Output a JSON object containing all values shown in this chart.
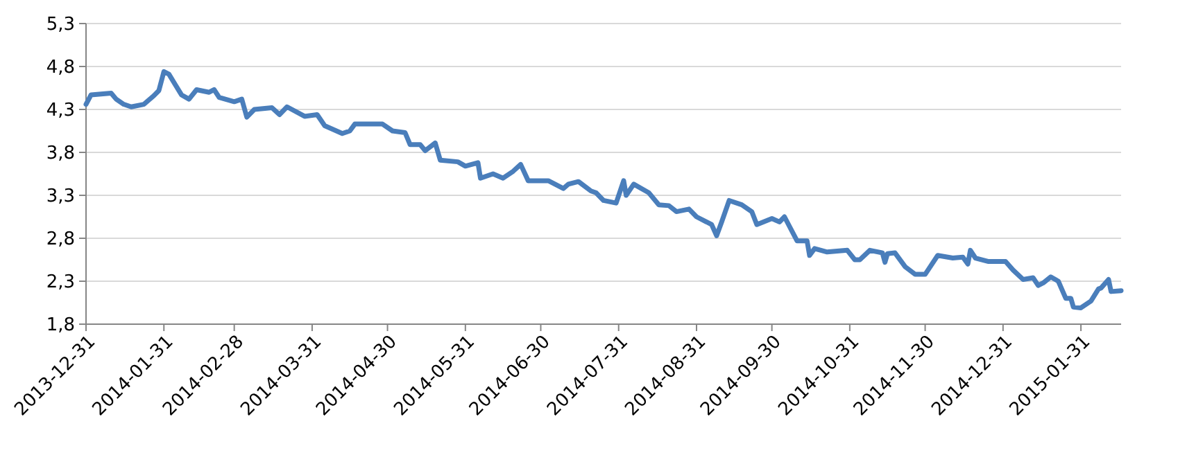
{
  "chart_data": {
    "type": "line",
    "x": [
      "2013-12-31",
      "2014-01-02",
      "2014-01-10",
      "2014-01-12",
      "2014-01-15",
      "2014-01-18",
      "2014-01-23",
      "2014-01-27",
      "2014-01-29",
      "2014-01-31",
      "2014-02-02",
      "2014-02-07",
      "2014-02-10",
      "2014-02-13",
      "2014-02-18",
      "2014-02-20",
      "2014-02-22",
      "2014-02-28",
      "2014-03-03",
      "2014-03-05",
      "2014-03-08",
      "2014-03-15",
      "2014-03-18",
      "2014-03-21",
      "2014-03-28",
      "2014-04-02",
      "2014-04-05",
      "2014-04-12",
      "2014-04-15",
      "2014-04-17",
      "2014-04-28",
      "2014-05-02",
      "2014-05-07",
      "2014-05-09",
      "2014-05-13",
      "2014-05-15",
      "2014-05-19",
      "2014-05-21",
      "2014-05-28",
      "2014-05-31",
      "2014-06-05",
      "2014-06-06",
      "2014-06-11",
      "2014-06-15",
      "2014-06-19",
      "2014-06-22",
      "2014-06-25",
      "2014-07-03",
      "2014-07-09",
      "2014-07-11",
      "2014-07-15",
      "2014-07-20",
      "2014-07-22",
      "2014-07-25",
      "2014-07-30",
      "2014-08-02",
      "2014-08-03",
      "2014-08-06",
      "2014-08-12",
      "2014-08-16",
      "2014-08-20",
      "2014-08-23",
      "2014-08-28",
      "2014-08-31",
      "2014-09-06",
      "2014-09-08",
      "2014-09-10",
      "2014-09-13",
      "2014-09-18",
      "2014-09-22",
      "2014-09-24",
      "2014-09-30",
      "2014-10-03",
      "2014-10-05",
      "2014-10-10",
      "2014-10-14",
      "2014-10-15",
      "2014-10-17",
      "2014-10-22",
      "2014-10-30",
      "2014-11-02",
      "2014-11-04",
      "2014-11-08",
      "2014-11-13",
      "2014-11-14",
      "2014-11-15",
      "2014-11-18",
      "2014-11-22",
      "2014-11-26",
      "2014-11-30",
      "2014-12-05",
      "2014-12-11",
      "2014-12-15",
      "2014-12-17",
      "2014-12-18",
      "2014-12-20",
      "2014-12-25",
      "2015-01-01",
      "2015-01-04",
      "2015-01-08",
      "2015-01-12",
      "2015-01-14",
      "2015-01-16",
      "2015-01-19",
      "2015-01-22",
      "2015-01-25",
      "2015-01-27",
      "2015-01-28",
      "2015-01-31",
      "2015-02-04",
      "2015-02-07",
      "2015-02-08",
      "2015-02-11",
      "2015-02-12",
      "2015-02-16"
    ],
    "series": [
      {
        "color": "#4a7ebb",
        "values": [
          4.36,
          4.47,
          4.49,
          4.42,
          4.36,
          4.33,
          4.36,
          4.46,
          4.52,
          4.74,
          4.71,
          4.47,
          4.42,
          4.53,
          4.5,
          4.53,
          4.44,
          4.39,
          4.42,
          4.21,
          4.3,
          4.32,
          4.24,
          4.33,
          4.22,
          4.24,
          4.11,
          4.02,
          4.05,
          4.13,
          4.13,
          4.05,
          4.03,
          3.89,
          3.89,
          3.82,
          3.91,
          3.71,
          3.69,
          3.64,
          3.68,
          3.5,
          3.55,
          3.5,
          3.58,
          3.66,
          3.47,
          3.47,
          3.38,
          3.43,
          3.46,
          3.35,
          3.33,
          3.24,
          3.21,
          3.47,
          3.3,
          3.43,
          3.33,
          3.19,
          3.18,
          3.11,
          3.14,
          3.05,
          2.96,
          2.83,
          2.99,
          3.24,
          3.19,
          3.11,
          2.96,
          3.03,
          2.99,
          3.05,
          2.77,
          2.77,
          2.6,
          2.68,
          2.64,
          2.66,
          2.55,
          2.55,
          2.66,
          2.63,
          2.52,
          2.62,
          2.63,
          2.47,
          2.38,
          2.38,
          2.6,
          2.57,
          2.58,
          2.5,
          2.66,
          2.57,
          2.53,
          2.53,
          2.43,
          2.32,
          2.34,
          2.25,
          2.28,
          2.35,
          2.3,
          2.1,
          2.1,
          2.0,
          1.99,
          2.07,
          2.21,
          2.22,
          2.32,
          2.18,
          2.19
        ]
      }
    ],
    "xlim": [
      "2013-12-31",
      "2015-02-16"
    ],
    "xticks": [
      "2013-12-31",
      "2014-01-31",
      "2014-02-28",
      "2014-03-31",
      "2014-04-30",
      "2014-05-31",
      "2014-06-30",
      "2014-07-31",
      "2014-08-31",
      "2014-09-30",
      "2014-10-31",
      "2014-11-30",
      "2014-12-31",
      "2015-01-31"
    ],
    "ylim": [
      1.8,
      5.3
    ],
    "yticks": [
      {
        "value": 1.8,
        "label": "1,8"
      },
      {
        "value": 2.3,
        "label": "2,3"
      },
      {
        "value": 2.8,
        "label": "2,8"
      },
      {
        "value": 3.3,
        "label": "3,3"
      },
      {
        "value": 3.8,
        "label": "3,8"
      },
      {
        "value": 4.3,
        "label": "4,3"
      },
      {
        "value": 4.8,
        "label": "4,8"
      },
      {
        "value": 5.3,
        "label": "5,3"
      }
    ],
    "grid": "y",
    "marker": "none",
    "line_style": "solid"
  }
}
